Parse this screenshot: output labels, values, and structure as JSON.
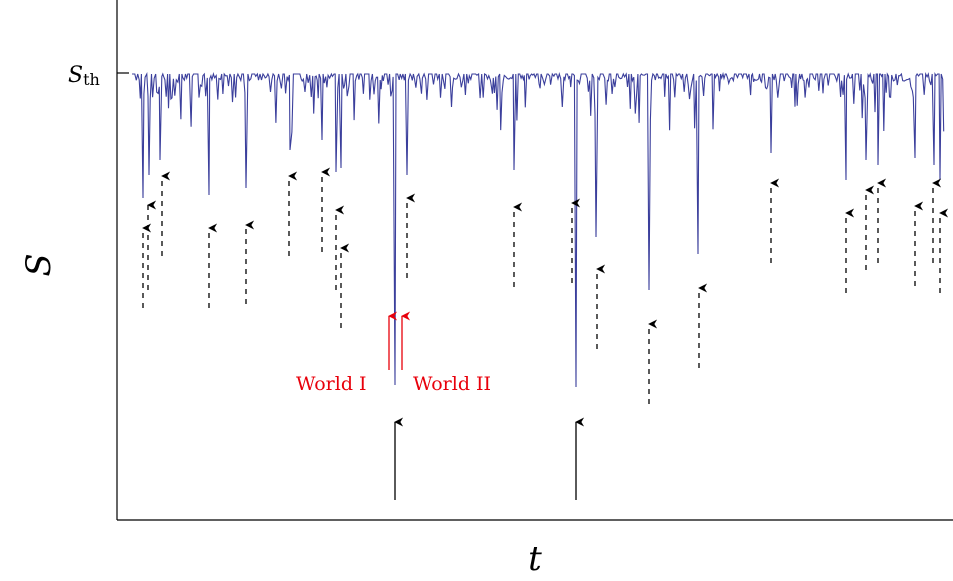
{
  "chart_data": {
    "type": "line",
    "xlabel": "t",
    "ylabel": "S",
    "ylabel_tick": {
      "main": "S",
      "sub": "th"
    },
    "series_color": "#3b3f9c",
    "arrow_color": "#000000",
    "highlight_color": "#e8000b",
    "annotations": {
      "world1": "World I",
      "world2": "World II"
    },
    "x": {
      "min": 0,
      "max": 1
    },
    "y": {
      "min": 0,
      "threshold": 1
    },
    "grid": false,
    "legend": "none"
  }
}
